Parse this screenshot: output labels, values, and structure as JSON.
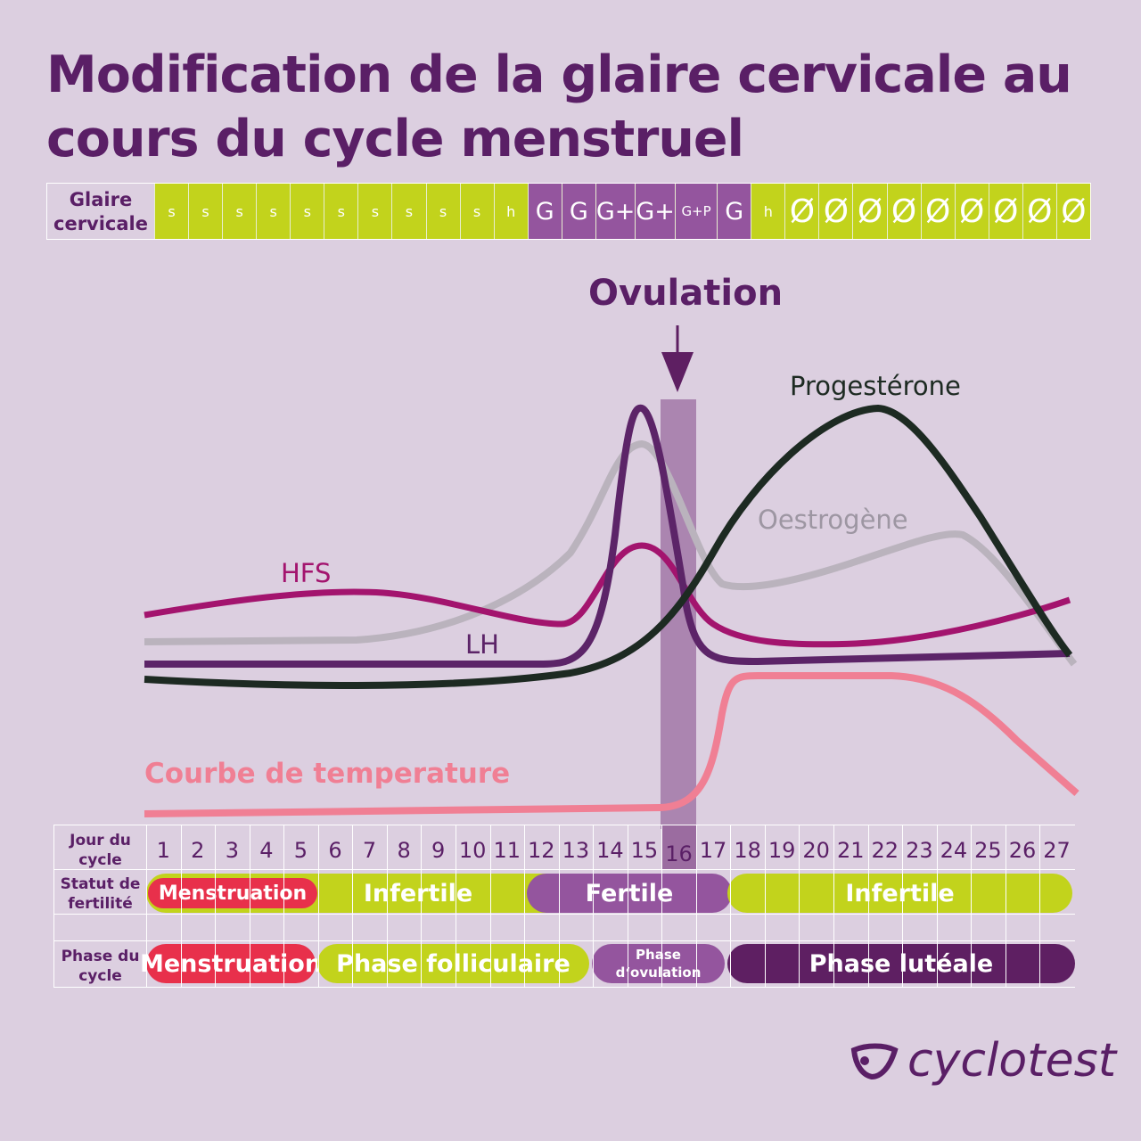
{
  "title": "Modification de la glaire cervicale au cours du cycle menstruel",
  "mucus": {
    "label_line1": "Glaire",
    "label_line2": "cervicale",
    "cells": [
      "s",
      "s",
      "s",
      "s",
      "s",
      "s",
      "s",
      "s",
      "s",
      "s",
      "h",
      "G",
      "G",
      "G+",
      "G+",
      "G+P",
      "G",
      "h",
      "Ø",
      "Ø",
      "Ø",
      "Ø",
      "Ø",
      "Ø",
      "Ø",
      "Ø",
      "Ø"
    ]
  },
  "colors": {
    "green": "#c2d31c",
    "purple": "#94559e",
    "dark_purple": "#5e1f62",
    "red": "#e8304b",
    "title": "#5a1f66",
    "hfs": "#a3146e",
    "lh": "#5c2468",
    "oestrogen": "#bab3bd",
    "progesterone": "#1d2a22",
    "temperature": "#f07f94",
    "ovulation_band": "#9b6ca0"
  },
  "labels": {
    "ovulation": "Ovulation",
    "progesterone": "Progestérone",
    "oestrogen": "Oestrogène",
    "hfs": "HFS",
    "lh": "LH",
    "temperature": "Courbe de temperature"
  },
  "grid": {
    "day_label_line1": "Jour du",
    "day_label_line2": "cycle",
    "days": [
      "1",
      "2",
      "3",
      "4",
      "5",
      "6",
      "7",
      "8",
      "9",
      "10",
      "11",
      "12",
      "13",
      "14",
      "15",
      "16",
      "17",
      "18",
      "19",
      "20",
      "21",
      "22",
      "23",
      "24",
      "25",
      "26",
      "27"
    ],
    "highlight_day": "16",
    "status_label_line1": "Statut de",
    "status_label_line2": "fertilité",
    "status": {
      "menstruation": "Menstruation",
      "infertile_1": "Infertile",
      "fertile": "Fertile",
      "infertile_2": "Infertile"
    },
    "phase_label_line1": "Phase du",
    "phase_label_line2": "cycle",
    "phase": {
      "menstruation": "Menstruation",
      "folliculaire": "Phase folliculaire",
      "ovulation_line1": "Phase",
      "ovulation_line2": "d‘ovulation",
      "luteale": "Phase lutéale"
    }
  },
  "logo": {
    "text": "cyclotest"
  }
}
